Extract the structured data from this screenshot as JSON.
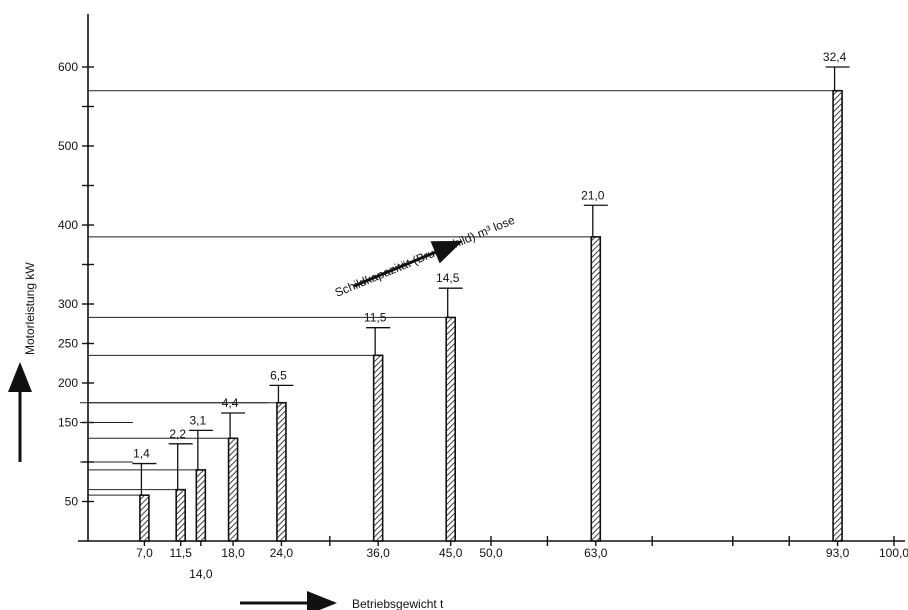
{
  "chart_data": {
    "type": "bar",
    "title": "",
    "xlabel": "Betriebsgewicht t",
    "ylabel": "Motorleistung kW",
    "annotation": "Schildkapazität (Brustschild) m³ lose",
    "xlim": [
      0,
      100
    ],
    "ylim": [
      0,
      650
    ],
    "x_ticks_labeled": [
      "7,0",
      "11,5",
      "14,0",
      "18,0",
      "24,0",
      "36,0",
      "45,0",
      "50,0",
      "63,0",
      "93,0",
      "100,0"
    ],
    "y_ticks_labeled": [
      "50",
      "150",
      "200",
      "250",
      "300",
      "400",
      "500",
      "600"
    ],
    "grid": false,
    "legend": "none",
    "series": [
      {
        "x": [
          7.0,
          11.5,
          14.0,
          18.0,
          24.0,
          36.0,
          45.0,
          63.0,
          93.0
        ],
        "x_labels": [
          "7,0",
          "11,5",
          "14,0",
          "18,0",
          "24,0",
          "36,0",
          "45,0",
          "63,0",
          "93,0"
        ],
        "values": [
          58,
          65,
          90,
          130,
          175,
          235,
          283,
          385,
          570
        ],
        "error_upper": [
          98,
          123,
          140,
          162,
          197,
          270,
          320,
          425,
          600
        ],
        "data_labels": [
          "1,4",
          "2,2",
          "3,1",
          "4,4",
          "6,5",
          "11,5",
          "14,5",
          "21,0",
          "32,4"
        ]
      }
    ]
  }
}
